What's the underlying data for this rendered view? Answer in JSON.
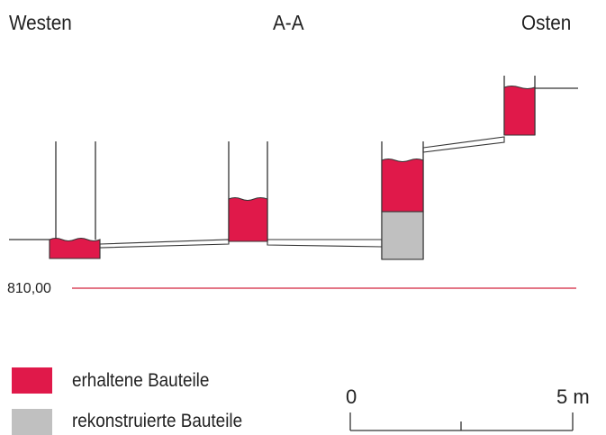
{
  "titles": {
    "west": "Westen",
    "center": "A-A",
    "east": "Osten"
  },
  "elevation": {
    "label": "810,00"
  },
  "legend": {
    "items": [
      {
        "label": "erhaltene Bauteile",
        "color": "#e0194a"
      },
      {
        "label": "rekonstruierte Bauteile",
        "color": "#c0c0c0"
      }
    ]
  },
  "scale": {
    "start_label": "0",
    "end_label": "5 m"
  },
  "colors": {
    "preserved": "#e0194a",
    "reconstructed": "#c0c0c0",
    "reference_line": "#d2233c",
    "line": "#333333"
  }
}
